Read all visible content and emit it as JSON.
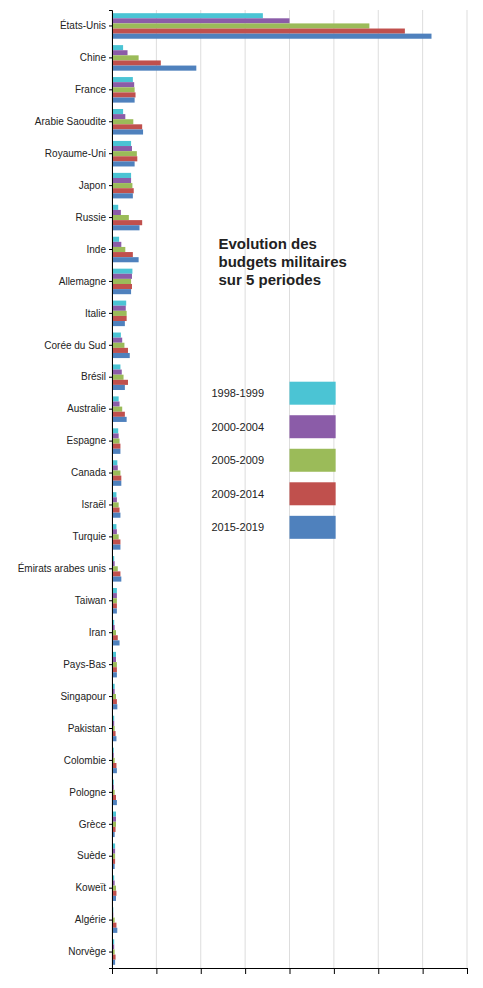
{
  "chart_data": {
    "type": "bar",
    "orientation": "horizontal",
    "title": "Evolution des\nbudgets militaires\nsur 5 periodes",
    "categories": [
      "États-Unis",
      "Chine",
      "France",
      "Arabie Saoudite",
      "Royaume-Uni",
      "Japon",
      "Russie",
      "Inde",
      "Allemagne",
      "Italie",
      "Corée du Sud",
      "Brésil",
      "Australie",
      "Espagne",
      "Canada",
      "Israël",
      "Turquie",
      "Émirats arabes unis",
      "Taiwan",
      "Iran",
      "Pays-Bas",
      "Singapour",
      "Pakistan",
      "Colombie",
      "Pologne",
      "Grèce",
      "Suède",
      "Koweït",
      "Algérie",
      "Norvège"
    ],
    "series": [
      {
        "name": "1998-1999",
        "color": "#4BC4D4",
        "values": [
          340,
          25,
          47,
          25,
          43,
          43,
          14,
          16,
          46,
          32,
          20,
          19,
          15,
          14,
          12,
          10,
          10,
          5,
          11,
          5,
          9,
          6,
          5,
          4,
          4,
          9,
          7,
          5,
          3,
          5
        ]
      },
      {
        "name": "2000-2004",
        "color": "#8B5CA8",
        "values": [
          400,
          35,
          50,
          30,
          45,
          43,
          20,
          21,
          45,
          31,
          23,
          22,
          17,
          15,
          13,
          11,
          11,
          6,
          11,
          6,
          9,
          6,
          5,
          4,
          4,
          9,
          7,
          6,
          3,
          5
        ]
      },
      {
        "name": "2005-2009",
        "color": "#9BBB59",
        "values": [
          580,
          60,
          51,
          48,
          56,
          46,
          38,
          30,
          43,
          33,
          28,
          26,
          23,
          17,
          19,
          15,
          15,
          13,
          11,
          9,
          11,
          9,
          6,
          6,
          6,
          9,
          7,
          9,
          6,
          6
        ]
      },
      {
        "name": "2009-2014",
        "color": "#C0504D",
        "values": [
          660,
          110,
          53,
          68,
          57,
          49,
          68,
          47,
          45,
          33,
          36,
          36,
          29,
          19,
          21,
          17,
          19,
          19,
          11,
          13,
          11,
          11,
          8,
          10,
          9,
          8,
          7,
          10,
          10,
          8
        ]
      },
      {
        "name": "2015-2019",
        "color": "#4F81BD",
        "values": [
          720,
          190,
          51,
          70,
          51,
          47,
          62,
          60,
          43,
          29,
          40,
          29,
          33,
          19,
          21,
          19,
          19,
          21,
          11,
          17,
          11,
          12,
          10,
          11,
          11,
          6,
          6,
          9,
          12,
          7
        ]
      }
    ],
    "xlim": [
      0,
      800
    ],
    "xticks": [
      0,
      100,
      200,
      300,
      400,
      500,
      600,
      700,
      800
    ],
    "grid": true,
    "legend": "right",
    "tick_labels": "y"
  }
}
